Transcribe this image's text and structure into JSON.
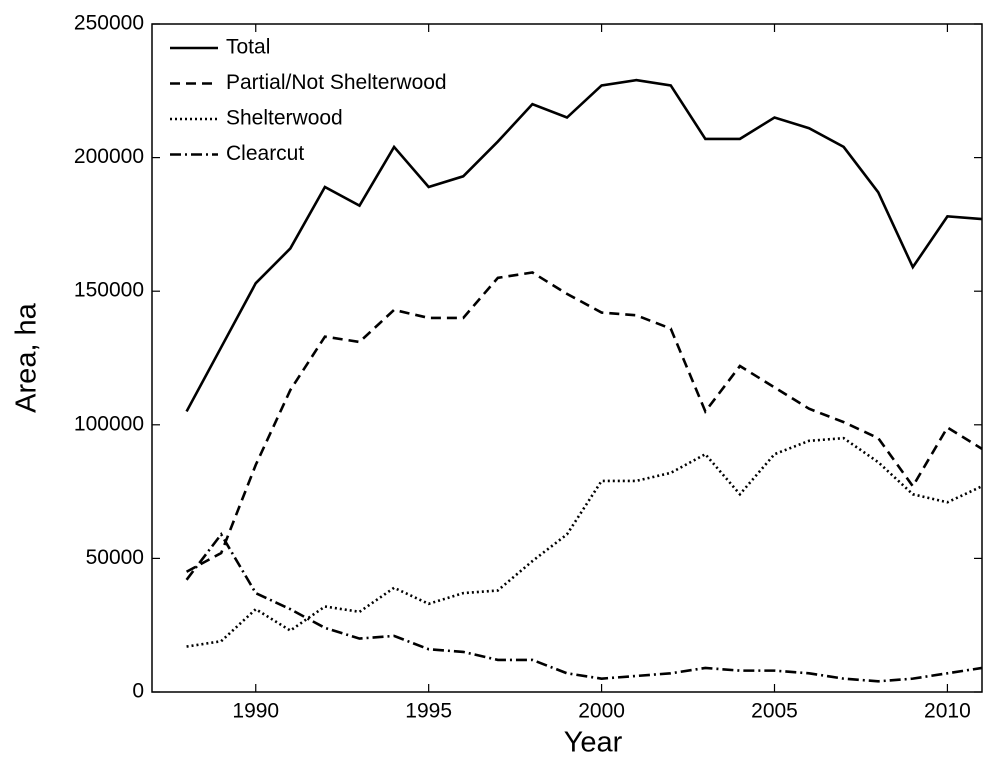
{
  "chart_data": {
    "type": "line",
    "xlabel": "Year",
    "ylabel": "Area, ha",
    "x": [
      1988,
      1989,
      1990,
      1991,
      1992,
      1993,
      1994,
      1995,
      1996,
      1997,
      1998,
      1999,
      2000,
      2001,
      2002,
      2003,
      2004,
      2005,
      2006,
      2007,
      2008,
      2009,
      2010,
      2011
    ],
    "series": [
      {
        "name": "Total",
        "color": "#000000",
        "style": "solid",
        "values": [
          105000,
          129000,
          153000,
          166000,
          189000,
          182000,
          204000,
          189000,
          193000,
          206000,
          220000,
          215000,
          227000,
          229000,
          227000,
          207000,
          207000,
          215000,
          211000,
          204000,
          187000,
          159000,
          178000,
          177000
        ]
      },
      {
        "name": "Partial/Not Shelterwood",
        "color": "#000000",
        "style": "dashed",
        "values": [
          45000,
          52000,
          85000,
          113000,
          133000,
          131000,
          143000,
          140000,
          140000,
          155000,
          157000,
          149000,
          142000,
          141000,
          136000,
          105000,
          122000,
          114000,
          106000,
          101000,
          95000,
          77000,
          99000,
          91000
        ]
      },
      {
        "name": "Shelterwood",
        "color": "#000000",
        "style": "dotted",
        "values": [
          17000,
          19000,
          31000,
          23000,
          32000,
          30000,
          39000,
          33000,
          37000,
          38000,
          49000,
          59000,
          79000,
          79000,
          82000,
          89000,
          74000,
          89000,
          94000,
          95000,
          86000,
          74000,
          71000,
          77000
        ]
      },
      {
        "name": "Clearcut",
        "color": "#000000",
        "style": "dashdot",
        "values": [
          42000,
          59000,
          37000,
          31000,
          24000,
          20000,
          21000,
          16000,
          15000,
          12000,
          12000,
          7000,
          5000,
          6000,
          7000,
          9000,
          8000,
          8000,
          7000,
          5000,
          4000,
          5000,
          7000,
          9000
        ]
      }
    ],
    "xlim": [
      1987,
      2011
    ],
    "xticks": [
      1990,
      1995,
      2000,
      2005,
      2010
    ],
    "ylim": [
      0,
      250000
    ],
    "yticks": [
      0,
      50000,
      100000,
      150000,
      200000,
      250000
    ],
    "grid": false,
    "legend": "upper left"
  }
}
